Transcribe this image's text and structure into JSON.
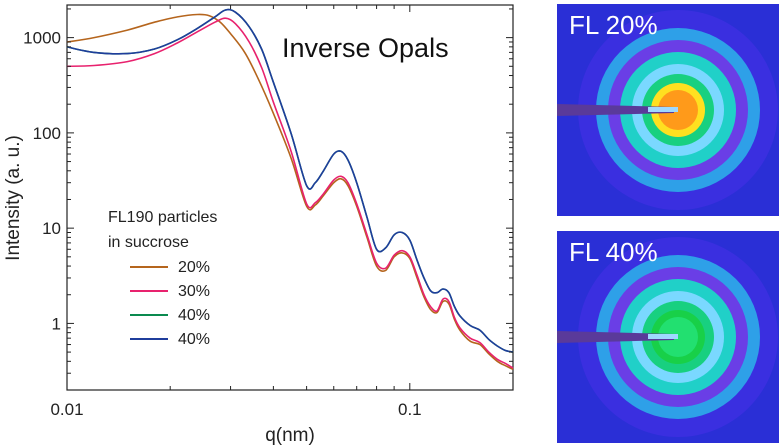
{
  "chart_data": {
    "type": "line",
    "title": "",
    "annotation": "Inverse Opals",
    "xlabel": "q(nm)",
    "ylabel": "Intensity (a. u.)",
    "xscale": "log",
    "yscale": "log",
    "xlim": [
      0.01,
      0.2
    ],
    "ylim": [
      0.2,
      2200
    ],
    "x_ticks": [
      {
        "value": 0.01,
        "label": "0.01"
      },
      {
        "value": 0.1,
        "label": "0.1"
      }
    ],
    "y_ticks": [
      {
        "value": 1,
        "label": "1"
      },
      {
        "value": 10,
        "label": "10"
      },
      {
        "value": 100,
        "label": "100"
      },
      {
        "value": 1000,
        "label": "1000"
      }
    ],
    "legend": {
      "title_lines": [
        "FL190 particles",
        "in succrose"
      ],
      "placement": "center-left"
    },
    "series": [
      {
        "name": "20%",
        "color": "#b5651d",
        "x": [
          0.01,
          0.012,
          0.015,
          0.018,
          0.021,
          0.024,
          0.026,
          0.028,
          0.03,
          0.033,
          0.036,
          0.04,
          0.045,
          0.05,
          0.053,
          0.056,
          0.06,
          0.063,
          0.066,
          0.07,
          0.075,
          0.08,
          0.085,
          0.09,
          0.095,
          0.1,
          0.105,
          0.11,
          0.115,
          0.12,
          0.125,
          0.13,
          0.135,
          0.14,
          0.15,
          0.16,
          0.17,
          0.18,
          0.19,
          0.2
        ],
        "y": [
          900,
          1000,
          1200,
          1450,
          1650,
          1750,
          1700,
          1450,
          1100,
          700,
          380,
          160,
          55,
          17,
          17.5,
          22,
          30,
          33,
          28,
          17,
          8,
          4,
          3.6,
          5,
          5.5,
          4.8,
          3,
          1.9,
          1.4,
          1.3,
          1.7,
          1.6,
          1.1,
          0.85,
          0.65,
          0.6,
          0.48,
          0.4,
          0.36,
          0.33
        ]
      },
      {
        "name": "30%",
        "color": "#e8226e",
        "x": [
          0.01,
          0.012,
          0.015,
          0.018,
          0.021,
          0.024,
          0.027,
          0.029,
          0.031,
          0.034,
          0.037,
          0.04,
          0.045,
          0.05,
          0.053,
          0.056,
          0.06,
          0.063,
          0.066,
          0.07,
          0.075,
          0.08,
          0.085,
          0.09,
          0.095,
          0.1,
          0.105,
          0.11,
          0.115,
          0.12,
          0.125,
          0.13,
          0.135,
          0.14,
          0.15,
          0.16,
          0.17,
          0.18,
          0.19,
          0.2
        ],
        "y": [
          500,
          510,
          560,
          680,
          880,
          1150,
          1450,
          1600,
          1400,
          900,
          480,
          210,
          65,
          18,
          18.5,
          23,
          32,
          35,
          30,
          18,
          8.5,
          4.3,
          3.8,
          5.2,
          5.8,
          5,
          3.2,
          2,
          1.5,
          1.35,
          1.8,
          1.7,
          1.15,
          0.9,
          0.7,
          0.63,
          0.5,
          0.42,
          0.38,
          0.34
        ]
      },
      {
        "name": "40%",
        "color": "#0a8a4f",
        "x": [
          0.01,
          0.012,
          0.015,
          0.018,
          0.021,
          0.024,
          0.027,
          0.029,
          0.031,
          0.034,
          0.037,
          0.04,
          0.045,
          0.05,
          0.053,
          0.056,
          0.06,
          0.063,
          0.066,
          0.07,
          0.075,
          0.08,
          0.085,
          0.09,
          0.095,
          0.1,
          0.105,
          0.11,
          0.115,
          0.12,
          0.125,
          0.13,
          0.135,
          0.14,
          0.15,
          0.16,
          0.17,
          0.18,
          0.19,
          0.2
        ],
        "y": [
          800,
          700,
          680,
          760,
          950,
          1250,
          1650,
          1950,
          1850,
          1300,
          750,
          340,
          100,
          28,
          30,
          40,
          60,
          64,
          52,
          30,
          13,
          6,
          6.2,
          8.5,
          9,
          7.5,
          4.6,
          3,
          2.2,
          2.1,
          2.3,
          2.1,
          1.5,
          1.2,
          0.95,
          0.85,
          0.68,
          0.58,
          0.52,
          0.5
        ]
      },
      {
        "name": "40%",
        "color": "#1f3d9c",
        "x": [
          0.01,
          0.012,
          0.015,
          0.018,
          0.021,
          0.024,
          0.027,
          0.029,
          0.031,
          0.034,
          0.037,
          0.04,
          0.045,
          0.05,
          0.053,
          0.056,
          0.06,
          0.063,
          0.066,
          0.07,
          0.075,
          0.08,
          0.085,
          0.09,
          0.095,
          0.1,
          0.105,
          0.11,
          0.115,
          0.12,
          0.125,
          0.13,
          0.135,
          0.14,
          0.15,
          0.16,
          0.17,
          0.18,
          0.19,
          0.2
        ],
        "y": [
          800,
          700,
          680,
          760,
          950,
          1250,
          1650,
          1950,
          1850,
          1300,
          750,
          340,
          100,
          28,
          30,
          40,
          60,
          64,
          52,
          30,
          13,
          6,
          6.2,
          8.5,
          9,
          7.5,
          4.6,
          3,
          2.2,
          2.1,
          2.3,
          2.1,
          1.5,
          1.2,
          0.95,
          0.85,
          0.68,
          0.58,
          0.52,
          0.5
        ]
      }
    ]
  },
  "panels": [
    {
      "label": "FL 20%",
      "background": "#2a2fd6",
      "colors": [
        "#3a2fe0",
        "#2ea0e8",
        "#6a3ee6",
        "#20d0c8",
        "#7ad8ff",
        "#18d080",
        "#ffe020",
        "#ff9a1a"
      ]
    },
    {
      "label": "FL 40%",
      "background": "#2a2fd6",
      "colors": [
        "#3a2fe0",
        "#2ea0e8",
        "#6a3ee6",
        "#20d0c8",
        "#7ad8ff",
        "#18d080",
        "#18d048",
        "#22e070"
      ]
    }
  ]
}
